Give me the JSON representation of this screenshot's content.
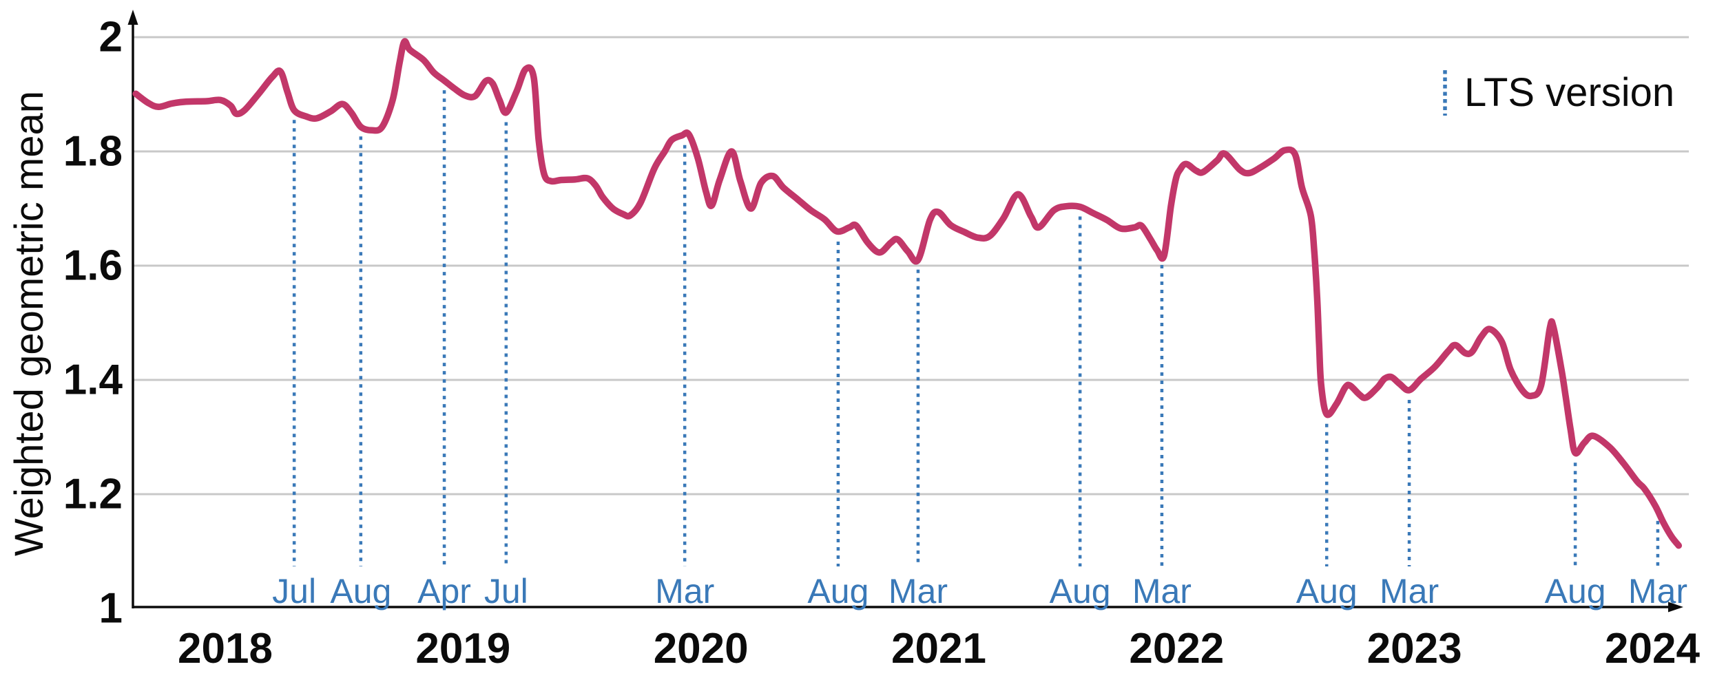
{
  "chart_data": {
    "type": "line",
    "title": "",
    "xlabel": "",
    "ylabel": "Weighted geometric mean",
    "ylim": [
      1,
      2
    ],
    "yticks": [
      1,
      1.2,
      1.4,
      1.6,
      1.8,
      2
    ],
    "ytick_labels": [
      "1",
      "1.2",
      "1.4",
      "1.6",
      "1.8",
      "2"
    ],
    "x_years": [
      2018,
      2019,
      2020,
      2021,
      2022,
      2023,
      2024
    ],
    "x_range": [
      2017.61,
      2024.12
    ],
    "grid": "horizontal",
    "legend": {
      "label": "LTS version",
      "position": "top-right"
    },
    "colors": {
      "series": "#c23769",
      "lts_marker": "#3a79b8",
      "grid": "#c8c8c8",
      "axis": "#0b0b0b",
      "month_label": "#3a79b8"
    },
    "series": [
      {
        "name": "Weighted geometric mean",
        "color": "#c23769",
        "points": [
          [
            2017.624,
            1.901
          ],
          [
            2017.676,
            1.885
          ],
          [
            2017.719,
            1.878
          ],
          [
            2017.777,
            1.884
          ],
          [
            2017.835,
            1.887
          ],
          [
            2017.922,
            1.888
          ],
          [
            2017.98,
            1.89
          ],
          [
            2018.023,
            1.88
          ],
          [
            2018.046,
            1.866
          ],
          [
            2018.081,
            1.872
          ],
          [
            2018.139,
            1.9
          ],
          [
            2018.197,
            1.93
          ],
          [
            2018.232,
            1.94
          ],
          [
            2018.261,
            1.905
          ],
          [
            2018.29,
            1.872
          ],
          [
            2018.342,
            1.861
          ],
          [
            2018.385,
            1.858
          ],
          [
            2018.443,
            1.87
          ],
          [
            2018.492,
            1.883
          ],
          [
            2018.53,
            1.868
          ],
          [
            2018.57,
            1.843
          ],
          [
            2018.617,
            1.837
          ],
          [
            2018.66,
            1.843
          ],
          [
            2018.704,
            1.89
          ],
          [
            2018.733,
            1.955
          ],
          [
            2018.753,
            1.992
          ],
          [
            2018.776,
            1.978
          ],
          [
            2018.834,
            1.96
          ],
          [
            2018.877,
            1.938
          ],
          [
            2018.921,
            1.924
          ],
          [
            2018.964,
            1.91
          ],
          [
            2019.008,
            1.898
          ],
          [
            2019.051,
            1.897
          ],
          [
            2019.095,
            1.923
          ],
          [
            2019.124,
            1.919
          ],
          [
            2019.153,
            1.89
          ],
          [
            2019.181,
            1.868
          ],
          [
            2019.225,
            1.905
          ],
          [
            2019.263,
            1.944
          ],
          [
            2019.297,
            1.93
          ],
          [
            2019.318,
            1.82
          ],
          [
            2019.341,
            1.76
          ],
          [
            2019.37,
            1.748
          ],
          [
            2019.413,
            1.75
          ],
          [
            2019.471,
            1.751
          ],
          [
            2019.523,
            1.753
          ],
          [
            2019.558,
            1.74
          ],
          [
            2019.587,
            1.72
          ],
          [
            2019.63,
            1.7
          ],
          [
            2019.674,
            1.69
          ],
          [
            2019.703,
            1.688
          ],
          [
            2019.746,
            1.71
          ],
          [
            2019.804,
            1.77
          ],
          [
            2019.848,
            1.8
          ],
          [
            2019.877,
            1.82
          ],
          [
            2019.92,
            1.828
          ],
          [
            2019.949,
            1.83
          ],
          [
            2019.987,
            1.788
          ],
          [
            2020.021,
            1.73
          ],
          [
            2020.045,
            1.705
          ],
          [
            2020.079,
            1.75
          ],
          [
            2020.129,
            1.8
          ],
          [
            2020.166,
            1.748
          ],
          [
            2020.21,
            1.7
          ],
          [
            2020.253,
            1.745
          ],
          [
            2020.302,
            1.757
          ],
          [
            2020.346,
            1.737
          ],
          [
            2020.404,
            1.717
          ],
          [
            2020.462,
            1.697
          ],
          [
            2020.52,
            1.681
          ],
          [
            2020.572,
            1.66
          ],
          [
            2020.624,
            1.667
          ],
          [
            2020.653,
            1.67
          ],
          [
            2020.702,
            1.64
          ],
          [
            2020.751,
            1.623
          ],
          [
            2020.798,
            1.64
          ],
          [
            2020.827,
            1.646
          ],
          [
            2020.87,
            1.625
          ],
          [
            2020.913,
            1.61
          ],
          [
            2020.963,
            1.68
          ],
          [
            2020.997,
            1.694
          ],
          [
            2021.05,
            1.671
          ],
          [
            2021.107,
            1.659
          ],
          [
            2021.165,
            1.649
          ],
          [
            2021.215,
            1.652
          ],
          [
            2021.272,
            1.683
          ],
          [
            2021.333,
            1.725
          ],
          [
            2021.388,
            1.686
          ],
          [
            2021.42,
            1.667
          ],
          [
            2021.484,
            1.697
          ],
          [
            2021.536,
            1.704
          ],
          [
            2021.594,
            1.703
          ],
          [
            2021.649,
            1.692
          ],
          [
            2021.707,
            1.68
          ],
          [
            2021.765,
            1.665
          ],
          [
            2021.823,
            1.667
          ],
          [
            2021.852,
            1.67
          ],
          [
            2021.889,
            1.647
          ],
          [
            2021.918,
            1.627
          ],
          [
            2021.947,
            1.617
          ],
          [
            2021.976,
            1.704
          ],
          [
            2021.997,
            1.752
          ],
          [
            2022.014,
            1.768
          ],
          [
            2022.04,
            1.778
          ],
          [
            2022.083,
            1.766
          ],
          [
            2022.112,
            1.764
          ],
          [
            2022.17,
            1.784
          ],
          [
            2022.202,
            1.796
          ],
          [
            2022.266,
            1.768
          ],
          [
            2022.304,
            1.762
          ],
          [
            2022.353,
            1.772
          ],
          [
            2022.411,
            1.788
          ],
          [
            2022.454,
            1.802
          ],
          [
            2022.498,
            1.795
          ],
          [
            2022.527,
            1.737
          ],
          [
            2022.564,
            1.688
          ],
          [
            2022.579,
            1.623
          ],
          [
            2022.591,
            1.543
          ],
          [
            2022.599,
            1.463
          ],
          [
            2022.608,
            1.39
          ],
          [
            2022.631,
            1.34
          ],
          [
            2022.672,
            1.358
          ],
          [
            2022.709,
            1.387
          ],
          [
            2022.73,
            1.39
          ],
          [
            2022.767,
            1.375
          ],
          [
            2022.796,
            1.369
          ],
          [
            2022.845,
            1.387
          ],
          [
            2022.874,
            1.402
          ],
          [
            2022.903,
            1.405
          ],
          [
            2022.938,
            1.393
          ],
          [
            2022.978,
            1.382
          ],
          [
            2023.028,
            1.402
          ],
          [
            2023.086,
            1.423
          ],
          [
            2023.143,
            1.451
          ],
          [
            2023.172,
            1.461
          ],
          [
            2023.213,
            1.447
          ],
          [
            2023.242,
            1.449
          ],
          [
            2023.28,
            1.475
          ],
          [
            2023.317,
            1.489
          ],
          [
            2023.367,
            1.467
          ],
          [
            2023.404,
            1.418
          ],
          [
            2023.453,
            1.382
          ],
          [
            2023.491,
            1.372
          ],
          [
            2023.532,
            1.39
          ],
          [
            2023.569,
            1.49
          ],
          [
            2023.584,
            1.493
          ],
          [
            2023.618,
            1.418
          ],
          [
            2023.636,
            1.37
          ],
          [
            2023.656,
            1.314
          ],
          [
            2023.676,
            1.272
          ],
          [
            2023.714,
            1.29
          ],
          [
            2023.752,
            1.302
          ],
          [
            2023.821,
            1.282
          ],
          [
            2023.879,
            1.254
          ],
          [
            2023.937,
            1.222
          ],
          [
            2023.966,
            1.21
          ],
          [
            2024.012,
            1.18
          ],
          [
            2024.047,
            1.15
          ],
          [
            2024.082,
            1.125
          ],
          [
            2024.111,
            1.11
          ]
        ]
      }
    ],
    "lts_markers": [
      {
        "label": "Jul",
        "x": 2018.29,
        "curve_value": 1.872
      },
      {
        "label": "Aug",
        "x": 2018.57,
        "curve_value": 1.843
      },
      {
        "label": "Apr",
        "x": 2018.921,
        "curve_value": 1.924
      },
      {
        "label": "Jul",
        "x": 2019.181,
        "curve_value": 1.868
      },
      {
        "label": "Mar",
        "x": 2019.932,
        "curve_value": 1.828
      },
      {
        "label": "Aug",
        "x": 2020.577,
        "curve_value": 1.659
      },
      {
        "label": "Mar",
        "x": 2020.913,
        "curve_value": 1.61
      },
      {
        "label": "Aug",
        "x": 2021.594,
        "curve_value": 1.703
      },
      {
        "label": "Mar",
        "x": 2021.938,
        "curve_value": 1.618
      },
      {
        "label": "Aug",
        "x": 2022.631,
        "curve_value": 1.34
      },
      {
        "label": "Mar",
        "x": 2022.978,
        "curve_value": 1.382
      },
      {
        "label": "Aug",
        "x": 2023.676,
        "curve_value": 1.272
      },
      {
        "label": "Mar",
        "x": 2024.023,
        "curve_value": 1.17
      }
    ]
  }
}
